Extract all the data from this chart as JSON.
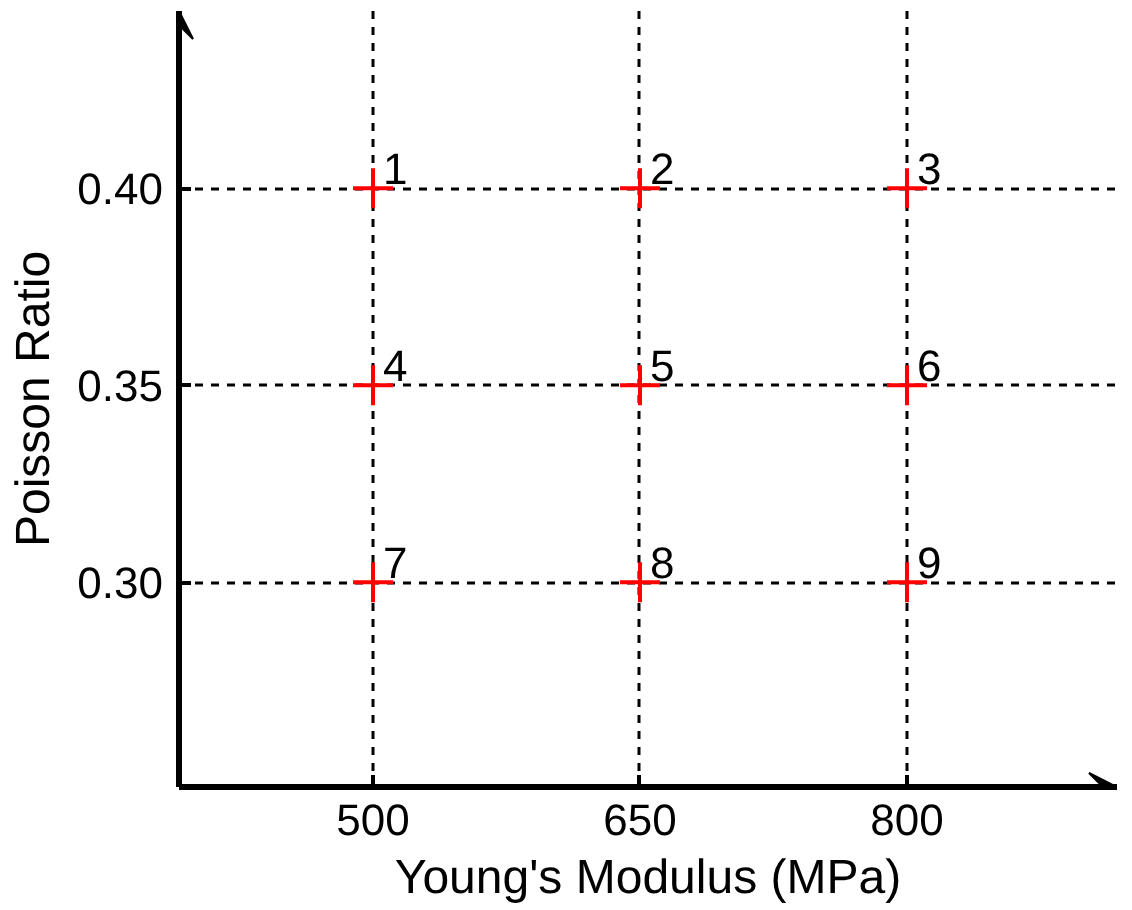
{
  "chart_data": {
    "type": "scatter",
    "xlabel": "Young's Modulus (MPa)",
    "ylabel": "Poisson Ratio",
    "x": [
      500,
      650,
      800,
      500,
      650,
      800,
      500,
      650,
      800
    ],
    "series": [
      {
        "color": "#ff0000",
        "values": [
          0.4,
          0.4,
          0.4,
          0.35,
          0.35,
          0.35,
          0.3,
          0.3,
          0.3
        ]
      }
    ],
    "xlim": [
      391,
      918
    ],
    "ylim": [
      0.248,
      0.445
    ],
    "xticks": [
      500,
      650,
      800
    ],
    "yticks": [
      {
        "value": 0.3,
        "label": "0.30"
      },
      {
        "value": 0.35,
        "label": "0.35"
      },
      {
        "value": 0.4,
        "label": "0.40"
      }
    ],
    "grid": true,
    "marker": "cross",
    "annotations": [
      {
        "text": "1",
        "x": 500,
        "y": 0.4
      },
      {
        "text": "2",
        "x": 650,
        "y": 0.4
      },
      {
        "text": "3",
        "x": 800,
        "y": 0.4
      },
      {
        "text": "4",
        "x": 500,
        "y": 0.35
      },
      {
        "text": "5",
        "x": 650,
        "y": 0.35
      },
      {
        "text": "6",
        "x": 800,
        "y": 0.35
      },
      {
        "text": "7",
        "x": 500,
        "y": 0.3
      },
      {
        "text": "8",
        "x": 650,
        "y": 0.3
      },
      {
        "text": "9",
        "x": 800,
        "y": 0.3
      }
    ]
  }
}
